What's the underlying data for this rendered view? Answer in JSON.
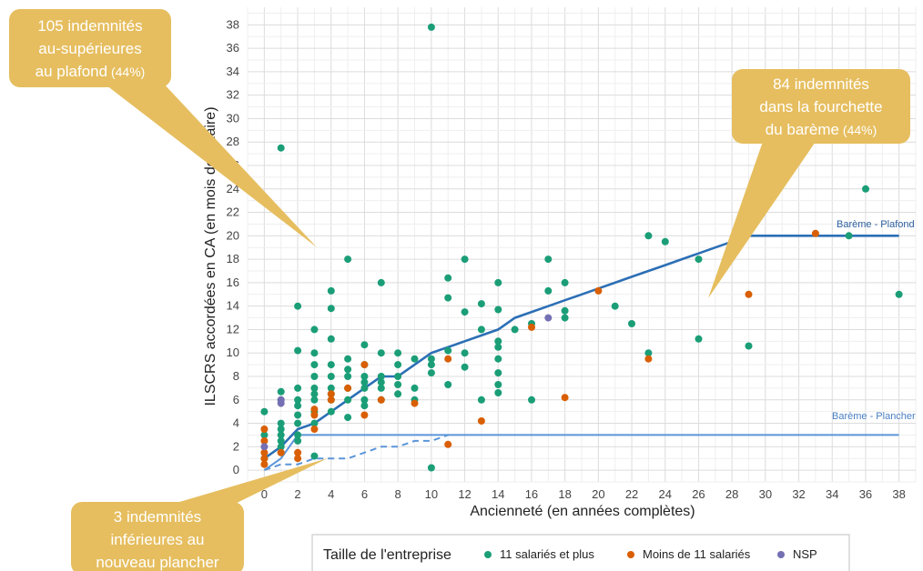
{
  "chart_data": {
    "type": "scatter",
    "xlabel": "Ancienneté (en années complètes)",
    "ylabel": "ILSCRS accordées en CA (en mois de salaire)",
    "xlim": [
      -1,
      39
    ],
    "ylim": [
      -1,
      39.5
    ],
    "xticks": [
      0,
      2,
      4,
      6,
      8,
      10,
      12,
      14,
      16,
      18,
      20,
      22,
      24,
      26,
      28,
      30,
      32,
      34,
      36,
      38
    ],
    "yticks": [
      0,
      2,
      4,
      6,
      8,
      10,
      12,
      14,
      16,
      18,
      20,
      22,
      24,
      26,
      28,
      30,
      32,
      34,
      36,
      38
    ],
    "grid": true,
    "colors": {
      "large": "#1b9e77",
      "small": "#d95f02",
      "nsp": "#7570b3",
      "plafond_line": "#2c6fb5",
      "plancher_line": "#5b95d9",
      "bubble": "#e6be5f"
    },
    "lines": [
      {
        "name": "Barème - Plafond",
        "style": "solid",
        "points": [
          [
            0,
            1
          ],
          [
            1,
            2
          ],
          [
            2,
            3.5
          ],
          [
            3,
            4
          ],
          [
            4,
            5
          ],
          [
            5,
            6
          ],
          [
            6,
            7
          ],
          [
            7,
            8
          ],
          [
            8,
            8
          ],
          [
            9,
            9
          ],
          [
            10,
            10
          ],
          [
            11,
            10.5
          ],
          [
            12,
            11
          ],
          [
            13,
            11.5
          ],
          [
            14,
            12
          ],
          [
            15,
            13
          ],
          [
            16,
            13.5
          ],
          [
            17,
            14
          ],
          [
            18,
            14.5
          ],
          [
            19,
            15
          ],
          [
            20,
            15.5
          ],
          [
            21,
            16
          ],
          [
            22,
            16.5
          ],
          [
            23,
            17
          ],
          [
            24,
            17.5
          ],
          [
            25,
            18
          ],
          [
            26,
            18.5
          ],
          [
            27,
            19
          ],
          [
            28,
            19.5
          ],
          [
            29,
            20
          ],
          [
            30,
            20
          ],
          [
            38,
            20
          ]
        ]
      },
      {
        "name": "Barème - Plancher",
        "style": "solid",
        "points": [
          [
            0,
            0
          ],
          [
            1,
            1
          ],
          [
            2,
            3
          ],
          [
            3,
            3
          ],
          [
            38,
            3
          ]
        ]
      },
      {
        "name": "",
        "style": "dashed",
        "points": [
          [
            0,
            0
          ],
          [
            1,
            0.5
          ],
          [
            2,
            0.5
          ],
          [
            3,
            1
          ],
          [
            4,
            1
          ],
          [
            5,
            1
          ],
          [
            6,
            1.5
          ],
          [
            7,
            2
          ],
          [
            8,
            2
          ],
          [
            9,
            2.5
          ],
          [
            10,
            2.5
          ],
          [
            11,
            3
          ]
        ]
      }
    ],
    "series": [
      {
        "name": "11 salariés et plus",
        "key": "large",
        "points": [
          [
            0,
            5
          ],
          [
            0,
            3
          ],
          [
            0,
            1
          ],
          [
            1,
            27.5
          ],
          [
            1,
            6.7
          ],
          [
            1,
            6
          ],
          [
            1,
            4
          ],
          [
            1,
            3.5
          ],
          [
            1,
            3
          ],
          [
            1,
            2.5
          ],
          [
            1,
            2
          ],
          [
            1,
            1.5
          ],
          [
            2,
            14
          ],
          [
            2,
            10.2
          ],
          [
            2,
            7
          ],
          [
            2,
            6
          ],
          [
            2,
            5.5
          ],
          [
            2,
            4.7
          ],
          [
            2,
            4
          ],
          [
            2,
            3
          ],
          [
            2,
            2.5
          ],
          [
            3,
            12
          ],
          [
            3,
            10
          ],
          [
            3,
            9
          ],
          [
            3,
            8
          ],
          [
            3,
            7
          ],
          [
            3,
            6.5
          ],
          [
            3,
            6
          ],
          [
            3,
            5
          ],
          [
            3,
            4
          ],
          [
            3,
            1.2
          ],
          [
            4,
            15.3
          ],
          [
            4,
            13.8
          ],
          [
            4,
            11.2
          ],
          [
            4,
            9
          ],
          [
            4,
            8
          ],
          [
            4,
            7
          ],
          [
            4,
            6.5
          ],
          [
            4,
            6
          ],
          [
            4,
            5
          ],
          [
            5,
            18
          ],
          [
            5,
            9.5
          ],
          [
            5,
            8.6
          ],
          [
            5,
            8
          ],
          [
            5,
            7
          ],
          [
            5,
            6
          ],
          [
            5,
            4.5
          ],
          [
            6,
            10.7
          ],
          [
            6,
            9
          ],
          [
            6,
            8
          ],
          [
            6,
            7.5
          ],
          [
            6,
            7
          ],
          [
            6,
            6
          ],
          [
            6,
            5.5
          ],
          [
            7,
            16
          ],
          [
            7,
            10
          ],
          [
            7,
            8
          ],
          [
            7,
            7.5
          ],
          [
            7,
            7
          ],
          [
            7,
            6
          ],
          [
            8,
            10
          ],
          [
            8,
            9
          ],
          [
            8,
            8
          ],
          [
            8,
            7.3
          ],
          [
            8,
            6.5
          ],
          [
            9,
            9.5
          ],
          [
            9,
            7
          ],
          [
            9,
            6
          ],
          [
            10,
            37.8
          ],
          [
            10,
            9.5
          ],
          [
            10,
            9
          ],
          [
            10,
            8.3
          ],
          [
            10,
            0.2
          ],
          [
            11,
            16.4
          ],
          [
            11,
            14.7
          ],
          [
            11,
            10.2
          ],
          [
            11,
            7.3
          ],
          [
            12,
            18
          ],
          [
            12,
            13.5
          ],
          [
            12,
            10
          ],
          [
            12,
            8.8
          ],
          [
            13,
            14.2
          ],
          [
            13,
            12
          ],
          [
            13,
            6
          ],
          [
            14,
            16
          ],
          [
            14,
            13.7
          ],
          [
            14,
            11
          ],
          [
            14,
            10.5
          ],
          [
            14,
            9.5
          ],
          [
            14,
            8.3
          ],
          [
            14,
            7.3
          ],
          [
            14,
            6.6
          ],
          [
            15,
            12
          ],
          [
            16,
            12.5
          ],
          [
            16,
            6
          ],
          [
            17,
            18
          ],
          [
            17,
            15.3
          ],
          [
            18,
            16
          ],
          [
            18,
            13.6
          ],
          [
            18,
            13
          ],
          [
            21,
            14
          ],
          [
            22,
            12.5
          ],
          [
            23,
            20
          ],
          [
            23,
            10
          ],
          [
            24,
            19.5
          ],
          [
            26,
            18
          ],
          [
            26,
            11.2
          ],
          [
            29,
            10.6
          ],
          [
            35,
            20
          ],
          [
            36,
            24
          ],
          [
            38,
            15
          ]
        ]
      },
      {
        "name": "Moins de 11 salariés",
        "key": "small",
        "points": [
          [
            0,
            3.5
          ],
          [
            0,
            2.5
          ],
          [
            0,
            1.5
          ],
          [
            0,
            1
          ],
          [
            0,
            0.5
          ],
          [
            1,
            1.5
          ],
          [
            2,
            1.5
          ],
          [
            2,
            1
          ],
          [
            3,
            5.2
          ],
          [
            3,
            4.7
          ],
          [
            3,
            3.5
          ],
          [
            4,
            6.5
          ],
          [
            4,
            6
          ],
          [
            5,
            7
          ],
          [
            6,
            9
          ],
          [
            6,
            4.7
          ],
          [
            7,
            6
          ],
          [
            9,
            5.7
          ],
          [
            11,
            9.5
          ],
          [
            11,
            2.2
          ],
          [
            13,
            4.2
          ],
          [
            16,
            12.2
          ],
          [
            18,
            6.2
          ],
          [
            20,
            15.3
          ],
          [
            23,
            9.5
          ],
          [
            29,
            15
          ],
          [
            33,
            20.2
          ]
        ]
      },
      {
        "name": "NSP",
        "key": "nsp",
        "points": [
          [
            0,
            2
          ],
          [
            1,
            6
          ],
          [
            1,
            5.7
          ],
          [
            17,
            13
          ]
        ]
      }
    ],
    "annotations": [
      {
        "id": "plafond",
        "lines": [
          "105 indemnités",
          "au-supérieures",
          "au plafond"
        ],
        "pct": "(44%)"
      },
      {
        "id": "fourchette",
        "lines": [
          "84 indemnités",
          "dans la fourchette",
          "du barème"
        ],
        "pct": "(44%)"
      },
      {
        "id": "plancher",
        "lines": [
          "3 indemnités",
          "inférieures au",
          "nouveau plancher"
        ],
        "pct": ""
      }
    ],
    "legend": {
      "title": "Taille de l'entreprise",
      "position": "bottom",
      "items": [
        {
          "key": "large",
          "label": "11 salariés et plus"
        },
        {
          "key": "small",
          "label": "Moins de 11 salariés"
        },
        {
          "key": "nsp",
          "label": "NSP"
        }
      ]
    }
  }
}
